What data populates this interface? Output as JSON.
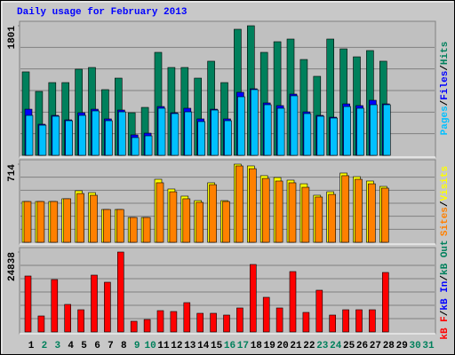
{
  "chart_data": {
    "type": "bar",
    "title": "Daily usage for February 2013",
    "categories": [
      "1",
      "2",
      "3",
      "4",
      "5",
      "6",
      "7",
      "8",
      "9",
      "10",
      "11",
      "12",
      "13",
      "14",
      "15",
      "16",
      "17",
      "18",
      "19",
      "20",
      "21",
      "22",
      "23",
      "24",
      "25",
      "26",
      "27",
      "28",
      "29",
      "30",
      "31"
    ],
    "category_colors": [
      "#000000",
      "#00805c",
      "#00805c",
      "#000000",
      "#000000",
      "#000000",
      "#000000",
      "#000000",
      "#00805c",
      "#00805c",
      "#000000",
      "#000000",
      "#000000",
      "#000000",
      "#000000",
      "#00805c",
      "#00805c",
      "#000000",
      "#000000",
      "#000000",
      "#000000",
      "#000000",
      "#00805c",
      "#00805c",
      "#000000",
      "#000000",
      "#000000",
      "#000000",
      "#000000",
      "#00805c",
      "#00805c"
    ],
    "legend_separator": "/",
    "panels": [
      {
        "ylim": [
          0,
          1801
        ],
        "yticks": [
          1801
        ],
        "series": [
          {
            "name": "Hits",
            "color": "#00805c",
            "values": [
              1160,
              888,
              1011,
              1011,
              1197,
              1221,
              913,
              1073,
              592,
              666,
              1431,
              1221,
              1221,
              1073,
              1308,
              1011,
              1752,
              1801,
              1431,
              1579,
              1616,
              1332,
              1098,
              1616,
              1480,
              1369,
              1456,
              1308,
              null,
              null,
              null
            ]
          },
          {
            "name": "Files",
            "color": "#0000ff",
            "values": [
              641,
              432,
              555,
              493,
              592,
              641,
              506,
              629,
              284,
              308,
              678,
              592,
              654,
              506,
              641,
              506,
              876,
              925,
              728,
              691,
              851,
              604,
              555,
              530,
              715,
              691,
              765,
              715,
              null,
              null,
              null
            ]
          },
          {
            "name": "Pages",
            "color": "#00c0ff",
            "values": [
              555,
              419,
              543,
              481,
              555,
              617,
              481,
              604,
              247,
              271,
              654,
              580,
              604,
              469,
              629,
              481,
              814,
              913,
              703,
              654,
              827,
              580,
              543,
              518,
              678,
              654,
              703,
              703,
              null,
              null,
              null
            ]
          }
        ]
      },
      {
        "ylim": [
          0,
          714
        ],
        "yticks": [
          714
        ],
        "series": [
          {
            "name": "Visits",
            "color": "#ffff00",
            "values": [
              373,
              373,
              373,
              398,
              471,
              454,
              300,
              300,
              227,
              227,
              576,
              487,
              422,
              381,
              544,
              381,
              714,
              698,
              609,
              592,
              568,
              535,
              430,
              462,
              633,
              600,
              560,
              511,
              null,
              null,
              null
            ]
          },
          {
            "name": "Sites",
            "color": "#ff8000",
            "values": [
              373,
              373,
              373,
              398,
              446,
              430,
              300,
              300,
              227,
              227,
              544,
              462,
              398,
              365,
              527,
              373,
              698,
              673,
              584,
              560,
              544,
              503,
              414,
              438,
              609,
              576,
              535,
              495,
              null,
              null,
              null
            ]
          }
        ]
      },
      {
        "ylim": [
          0,
          24838
        ],
        "yticks": [
          24838
        ],
        "series": [
          {
            "name": "kB Out",
            "color": "#00805c",
            "values": [
              null,
              null,
              null,
              null,
              null,
              null,
              null,
              null,
              null,
              null,
              null,
              null,
              null,
              null,
              null,
              null,
              null,
              null,
              null,
              null,
              null,
              null,
              null,
              null,
              null,
              null,
              null,
              null,
              null,
              null,
              null
            ]
          },
          {
            "name": "kB In",
            "color": "#0000ff",
            "values": [
              null,
              null,
              null,
              null,
              null,
              null,
              null,
              null,
              null,
              null,
              null,
              null,
              null,
              null,
              null,
              null,
              null,
              null,
              null,
              null,
              null,
              null,
              null,
              null,
              null,
              null,
              null,
              null,
              null,
              null,
              null
            ]
          },
          {
            "name": "kB F",
            "color": "#ff0000",
            "values": [
              17387,
              4968,
              16283,
              8555,
              6899,
              17663,
              15455,
              24838,
              3312,
              3864,
              6623,
              6347,
              9107,
              5795,
              5795,
              5244,
              7451,
              20974,
              10763,
              7451,
              18766,
              6071,
              12971,
              5244,
              6899,
              6899,
              6899,
              18490,
              null,
              null,
              null
            ]
          }
        ]
      }
    ]
  }
}
